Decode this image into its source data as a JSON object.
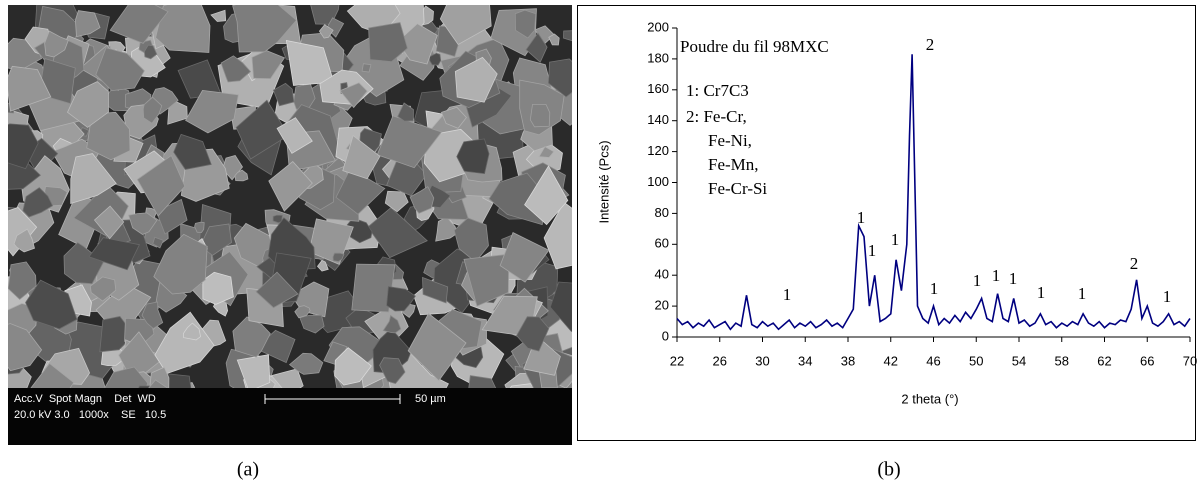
{
  "panel_a": {
    "label": "(a)",
    "scale_bar": "50 µm",
    "info_header": "Acc.V  Spot Magn    Det  WD",
    "info_values": "20.0 kV 3.0   1000x    SE   10.5"
  },
  "chart_data": {
    "type": "line",
    "panel_label": "(b)",
    "xlabel": "2 theta (°)",
    "ylabel": "Intensité (Pcs)",
    "legend_text": [
      "Poudre du fil 98MXC",
      "1: Cr7C3",
      "2: Fe-Cr,",
      "Fe-Ni,",
      "Fe-Mn,",
      "Fe-Cr-Si"
    ],
    "annotations": [
      "1",
      "1",
      "1",
      "1",
      "1",
      "1",
      "1",
      "1",
      "1",
      "1",
      "1",
      "2",
      "2"
    ],
    "color": "#000080",
    "x": [
      22,
      22.5,
      23,
      23.5,
      24,
      24.5,
      25,
      25.5,
      26,
      26.5,
      27,
      27.5,
      28,
      28.5,
      29,
      29.5,
      30,
      30.5,
      31,
      31.5,
      32,
      32.5,
      33,
      33.5,
      34,
      34.5,
      35,
      35.5,
      36,
      36.5,
      37,
      37.5,
      38,
      38.5,
      39,
      39.5,
      40,
      40.5,
      41,
      41.5,
      42,
      42.5,
      43,
      43.5,
      43.75,
      44,
      44.5,
      45,
      45.5,
      46,
      46.5,
      47,
      47.5,
      48,
      48.5,
      49,
      49.5,
      50,
      50.5,
      51,
      51.5,
      52,
      52.5,
      53,
      53.5,
      54,
      54.5,
      55,
      55.5,
      56,
      56.5,
      57,
      57.5,
      58,
      58.5,
      59,
      59.5,
      60,
      60.5,
      61,
      61.5,
      62,
      62.5,
      63,
      63.5,
      64,
      64.5,
      65,
      65.5,
      66,
      66.5,
      67,
      67.5,
      68,
      68.5,
      69,
      69.5,
      70
    ],
    "values": [
      12,
      8,
      10,
      6,
      9,
      7,
      11,
      6,
      8,
      10,
      5,
      9,
      7,
      27,
      8,
      6,
      10,
      7,
      9,
      5,
      8,
      11,
      6,
      9,
      7,
      10,
      6,
      8,
      11,
      7,
      9,
      6,
      12,
      18,
      72,
      65,
      20,
      40,
      10,
      12,
      15,
      50,
      30,
      60,
      130,
      183,
      20,
      12,
      9,
      20,
      8,
      12,
      9,
      14,
      10,
      16,
      12,
      18,
      25,
      12,
      10,
      28,
      12,
      10,
      25,
      9,
      11,
      7,
      9,
      15,
      8,
      10,
      6,
      9,
      7,
      10,
      8,
      15,
      9,
      7,
      10,
      6,
      9,
      8,
      11,
      10,
      18,
      37,
      12,
      20,
      9,
      7,
      10,
      15,
      8,
      10,
      7,
      12
    ],
    "xlim": [
      22,
      70
    ],
    "xticks": [
      22,
      26,
      30,
      34,
      38,
      42,
      46,
      50,
      54,
      58,
      62,
      66,
      70
    ],
    "ylim": [
      0,
      200
    ],
    "yticks": [
      0,
      20,
      40,
      60,
      80,
      100,
      120,
      140,
      160,
      180,
      200
    ]
  }
}
